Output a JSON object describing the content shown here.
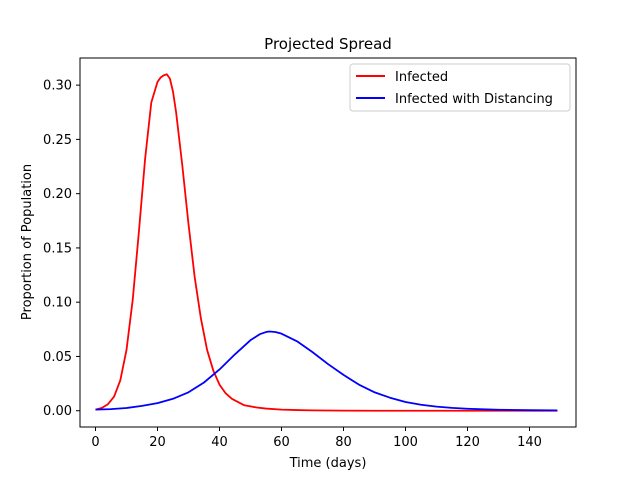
{
  "chart_data": {
    "type": "line",
    "title": "Projected Spread",
    "xlabel": "Time (days)",
    "ylabel": "Proportion of Population",
    "xlim": [
      -5,
      155
    ],
    "ylim": [
      -0.015,
      0.325
    ],
    "xticks": [
      0,
      20,
      40,
      60,
      80,
      100,
      120,
      140
    ],
    "yticks": [
      0.0,
      0.05,
      0.1,
      0.15,
      0.2,
      0.25,
      0.3
    ],
    "xtick_labels": [
      "0",
      "20",
      "40",
      "60",
      "80",
      "100",
      "120",
      "140"
    ],
    "ytick_labels": [
      "0.00",
      "0.05",
      "0.10",
      "0.15",
      "0.20",
      "0.25",
      "0.30"
    ],
    "grid": false,
    "legend_position": "top-right",
    "series": [
      {
        "name": "Infected",
        "color": "#ff0000",
        "x": [
          0,
          2,
          4,
          6,
          8,
          10,
          12,
          14,
          16,
          18,
          20,
          21,
          22,
          23,
          24,
          25,
          26,
          28,
          30,
          32,
          34,
          36,
          38,
          40,
          42,
          44,
          46,
          48,
          50,
          52,
          55,
          60,
          65,
          70,
          80,
          90,
          100,
          110,
          120,
          130,
          140,
          149
        ],
        "y": [
          0.001,
          0.0025,
          0.006,
          0.013,
          0.028,
          0.056,
          0.102,
          0.165,
          0.232,
          0.284,
          0.303,
          0.307,
          0.309,
          0.31,
          0.306,
          0.294,
          0.275,
          0.226,
          0.172,
          0.123,
          0.085,
          0.056,
          0.037,
          0.024,
          0.016,
          0.011,
          0.008,
          0.005,
          0.004,
          0.003,
          0.002,
          0.001,
          0.0006,
          0.0003,
          0.0001,
          0.0,
          0.0,
          0.0,
          0.0,
          0.0,
          0.0,
          0.0
        ]
      },
      {
        "name": "Infected with Distancing",
        "color": "#0000ff",
        "x": [
          0,
          5,
          10,
          15,
          20,
          25,
          30,
          35,
          40,
          45,
          50,
          53,
          55,
          56,
          58,
          60,
          65,
          70,
          75,
          80,
          85,
          90,
          95,
          100,
          105,
          110,
          115,
          120,
          125,
          130,
          140,
          149
        ],
        "y": [
          0.001,
          0.0015,
          0.0025,
          0.0045,
          0.007,
          0.011,
          0.017,
          0.026,
          0.038,
          0.052,
          0.065,
          0.0705,
          0.0725,
          0.073,
          0.0725,
          0.071,
          0.064,
          0.054,
          0.043,
          0.033,
          0.024,
          0.017,
          0.012,
          0.008,
          0.0055,
          0.0038,
          0.0026,
          0.0018,
          0.0013,
          0.0009,
          0.0005,
          0.0003
        ]
      }
    ]
  }
}
